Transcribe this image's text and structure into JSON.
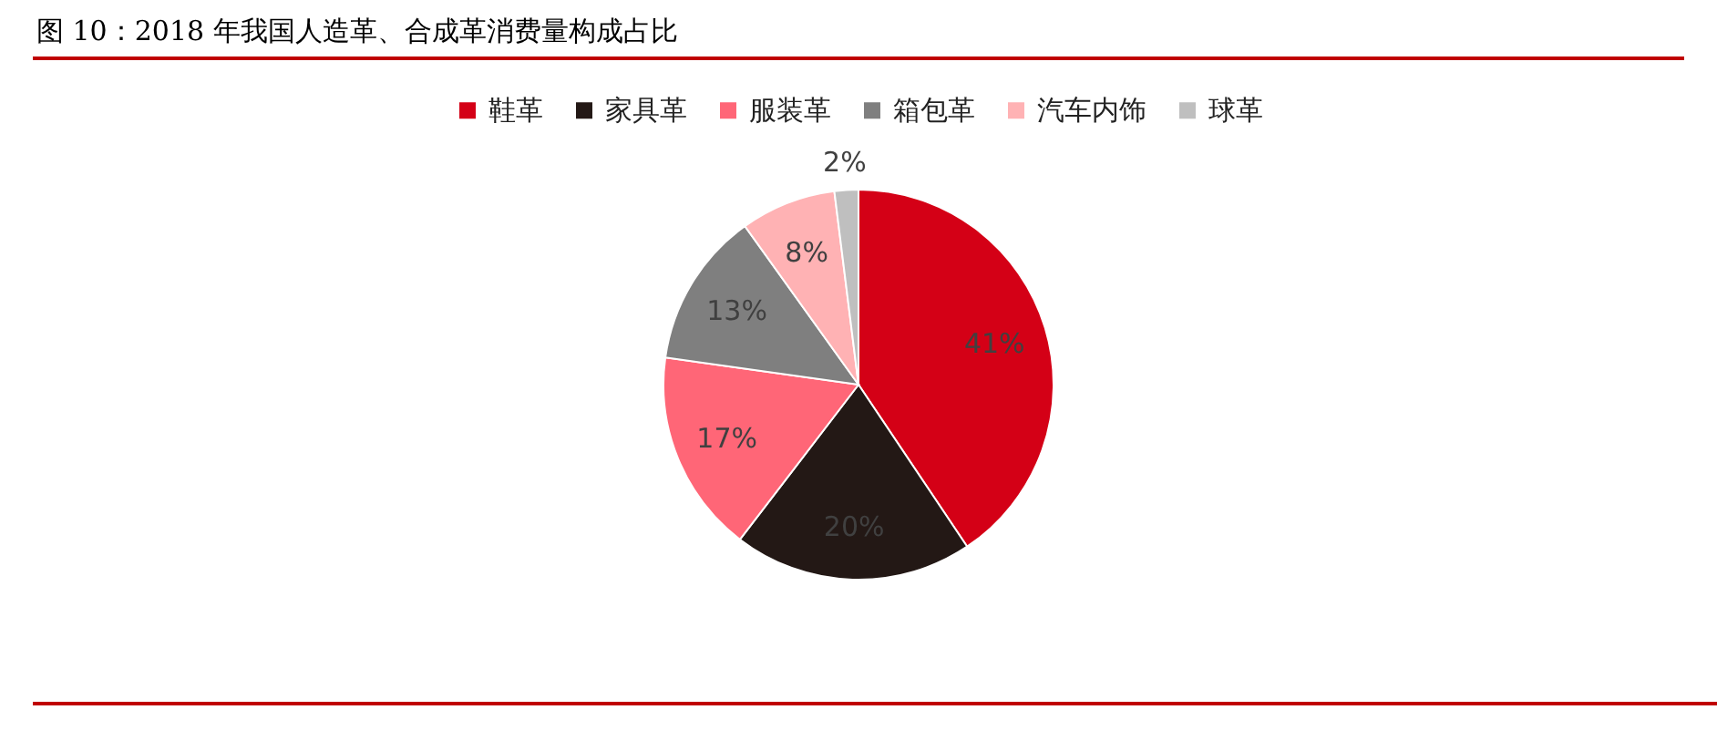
{
  "chart_data": {
    "type": "pie",
    "title": "图 10：2018 年我国人造革、合成革消费量构成占比",
    "categories": [
      "鞋革",
      "家具革",
      "服装革",
      "箱包革",
      "汽车内饰",
      "球革"
    ],
    "values": [
      41,
      20,
      17,
      13,
      8,
      2
    ],
    "colors": [
      "#d40016",
      "#231815",
      "#ff6677",
      "#7f7f7f",
      "#ffb2b4",
      "#bfbfbf"
    ],
    "value_labels": [
      "41%",
      "20%",
      "17%",
      "13%",
      "8%",
      "2%"
    ],
    "legend": "top"
  }
}
